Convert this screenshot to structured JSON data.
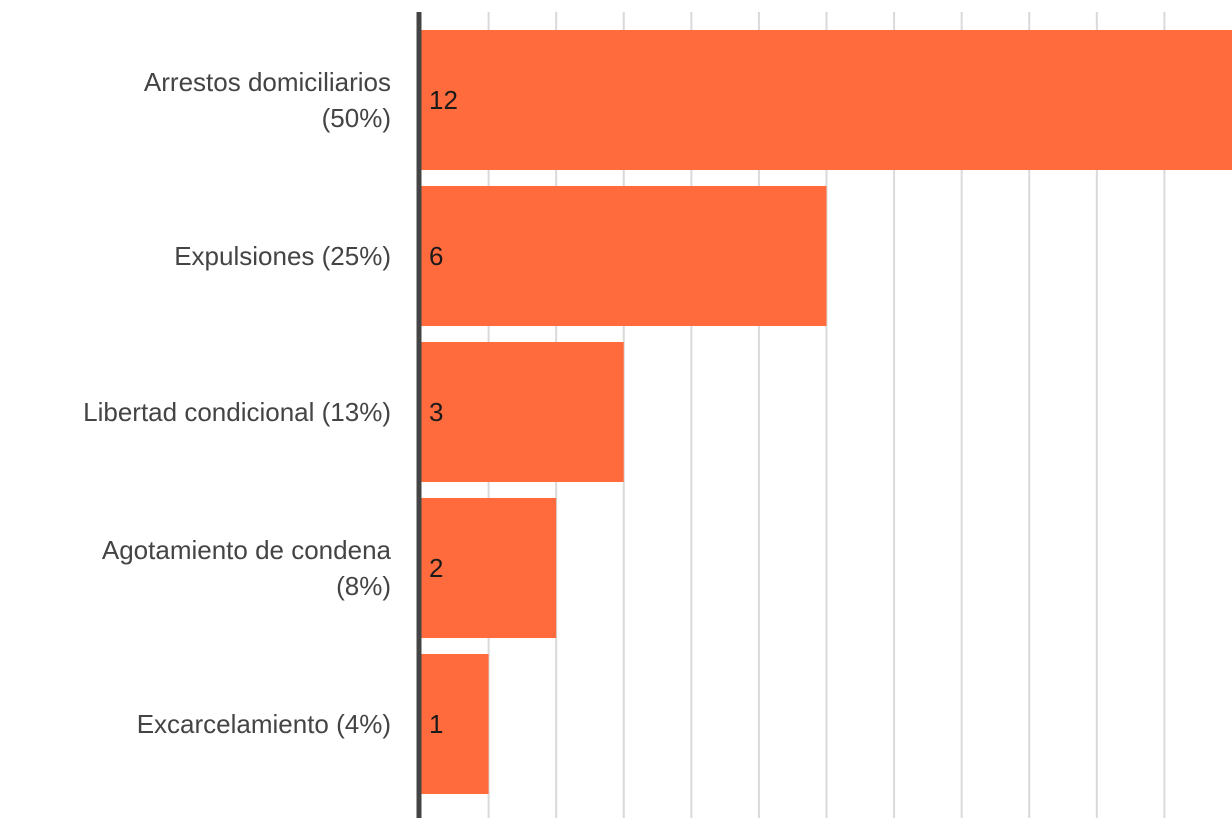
{
  "chart_data": {
    "type": "bar",
    "orientation": "horizontal",
    "categories": [
      [
        "Arrestos domiciliarios",
        "(50%)"
      ],
      [
        "Expulsiones (25%)"
      ],
      [
        "Libertad condicional (13%)"
      ],
      [
        "Agotamiento de condena",
        "(8%)"
      ],
      [
        "Excarcelamiento (4%)"
      ]
    ],
    "values": [
      12,
      6,
      3,
      2,
      1
    ],
    "data_labels": [
      "12",
      "6",
      "3",
      "2",
      "1"
    ],
    "xlim": [
      0,
      12
    ],
    "grid": true,
    "legend": "none",
    "colors": {
      "bar": "#FF6B3D",
      "grid": "#d9d9d9",
      "axis": "#444444"
    }
  }
}
